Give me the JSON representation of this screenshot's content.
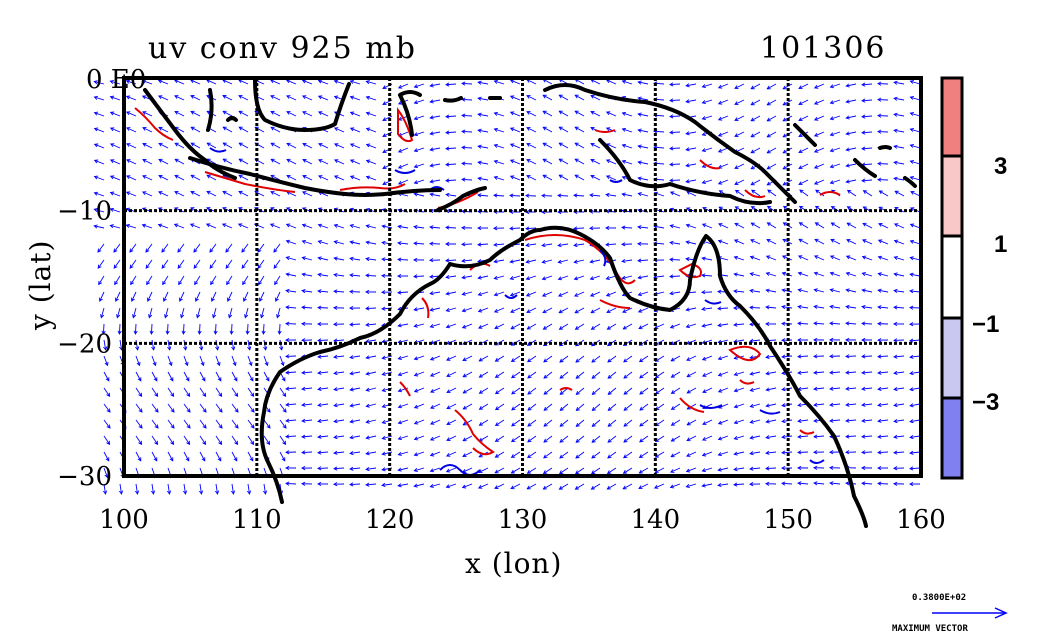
{
  "title_left": "uv conv 925 mb",
  "title_right": "101306",
  "corner_label": "0 E0",
  "x_axis": {
    "label": "x (lon)",
    "ticks": [
      "100",
      "110",
      "120",
      "130",
      "140",
      "150",
      "160"
    ],
    "range": [
      100,
      160
    ]
  },
  "y_axis": {
    "label": "y (lat)",
    "ticks": [
      "−10",
      "−20",
      "−30"
    ],
    "range": [
      -30,
      0
    ]
  },
  "colorbar": {
    "labels": [
      "3",
      "1",
      "−1",
      "−3"
    ],
    "colors": [
      "#f08080",
      "#f8c8c8",
      "#ffffff",
      "#c8c8f0",
      "#8080f0"
    ]
  },
  "reference_vector": {
    "top_label": "0.3800E+02",
    "bottom_label": "MAXIMUM VECTOR"
  },
  "vector_color": "#0000ff",
  "contour_positive_color": "#e00000",
  "contour_negative_color": "#0000e0",
  "coastline_color": "#000000"
}
